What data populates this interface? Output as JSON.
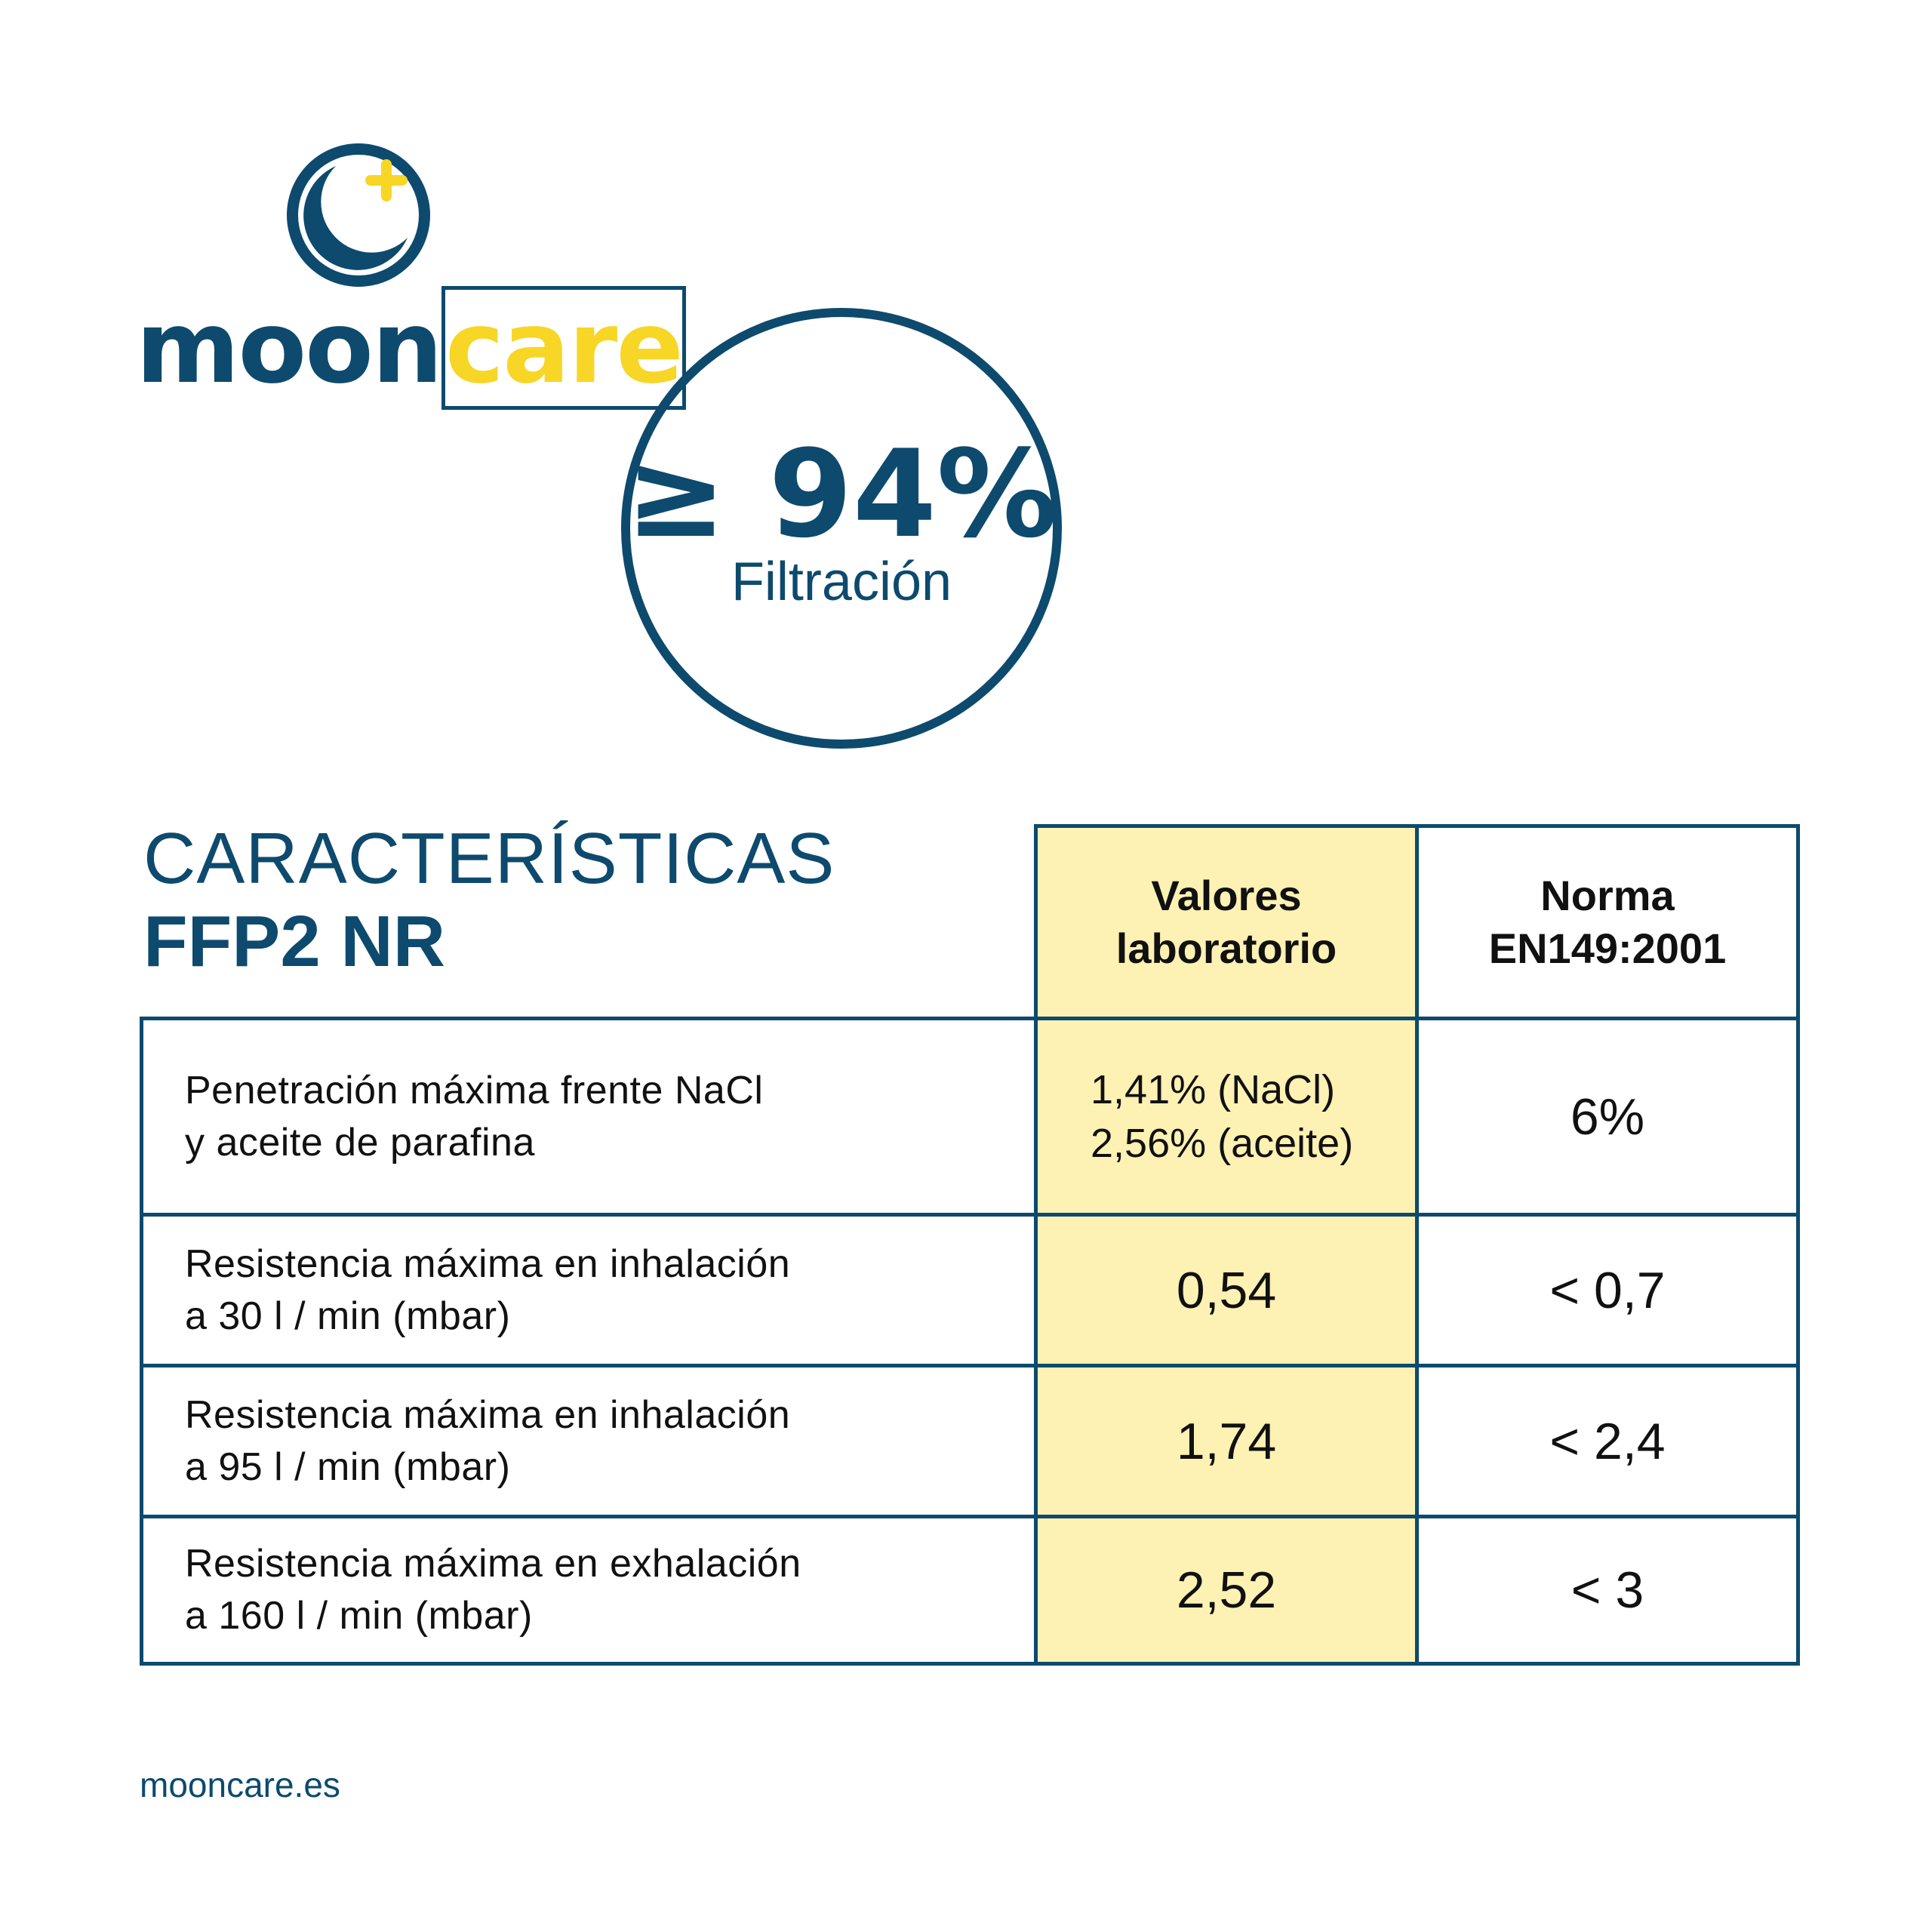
{
  "brand": {
    "name_part1": "moon",
    "name_part2": "care",
    "primary_color": "#0d4a6e",
    "accent_color": "#f7d625"
  },
  "badge": {
    "value": "≥ 94%",
    "label": "Filtración"
  },
  "heading": {
    "line1": "CARACTERÍSTICAS",
    "line2": "FFP2 NR"
  },
  "table": {
    "headers": {
      "lab": "Valores laboratorio",
      "norm": "Norma EN149:2001"
    },
    "rows": [
      {
        "label_line1": "Penetración máxima frente NaCl",
        "label_line2": "y aceite de parafina",
        "lab_line1": "1,41% (NaCl)",
        "lab_line2": "2,56% (aceite)",
        "norm": "6%"
      },
      {
        "label_line1": "Resistencia máxima en inhalación",
        "label_line2": "a 30 l / min (mbar)",
        "lab": "0,54",
        "norm": "< 0,7"
      },
      {
        "label_line1": "Resistencia máxima en inhalación",
        "label_line2": "a 95 l / min (mbar)",
        "lab": "1,74",
        "norm": "< 2,4"
      },
      {
        "label_line1": "Resistencia máxima en exhalación",
        "label_line2": "a 160 l / min (mbar)",
        "lab": "2,52",
        "norm": "< 3"
      }
    ],
    "lab_column_color": "#fdf1b3"
  },
  "footer": {
    "url": "mooncare.es"
  }
}
